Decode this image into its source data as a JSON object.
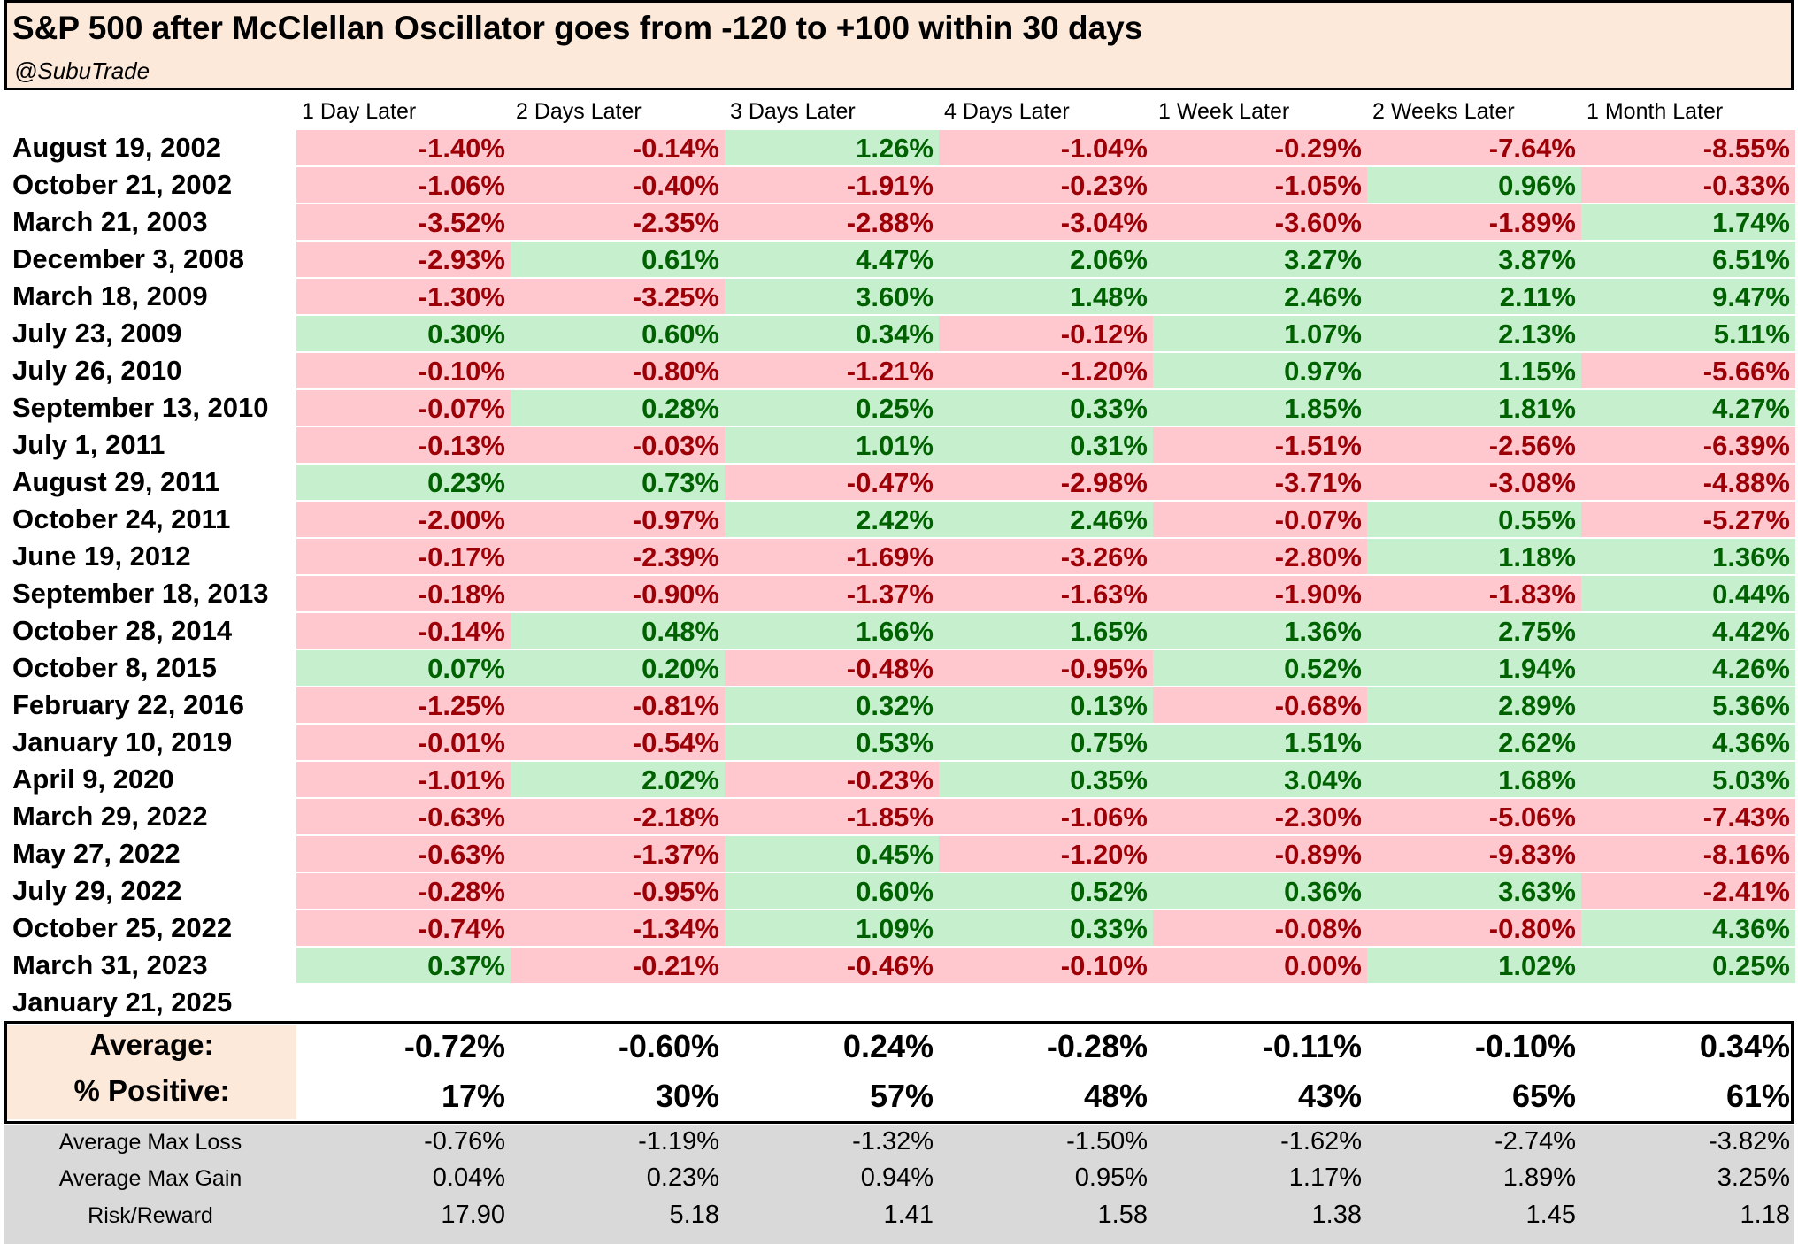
{
  "title": "S&P 500 after McClellan Oscillator goes from -120 to +100 within 30 days",
  "subtitle": "@SubuTrade",
  "chart_data": {
    "type": "table",
    "columns": [
      "1 Day Later",
      "2 Days Later",
      "3 Days Later",
      "4 Days Later",
      "1 Week Later",
      "2 Weeks Later",
      "1 Month Later"
    ],
    "rows": [
      {
        "date": "August 19, 2002",
        "values": [
          "-1.40%",
          "-0.14%",
          "1.26%",
          "-1.04%",
          "-0.29%",
          "-7.64%",
          "-8.55%"
        ]
      },
      {
        "date": "October 21, 2002",
        "values": [
          "-1.06%",
          "-0.40%",
          "-1.91%",
          "-0.23%",
          "-1.05%",
          "0.96%",
          "-0.33%"
        ]
      },
      {
        "date": "March 21, 2003",
        "values": [
          "-3.52%",
          "-2.35%",
          "-2.88%",
          "-3.04%",
          "-3.60%",
          "-1.89%",
          "1.74%"
        ]
      },
      {
        "date": "December 3, 2008",
        "values": [
          "-2.93%",
          "0.61%",
          "4.47%",
          "2.06%",
          "3.27%",
          "3.87%",
          "6.51%"
        ]
      },
      {
        "date": "March 18, 2009",
        "values": [
          "-1.30%",
          "-3.25%",
          "3.60%",
          "1.48%",
          "2.46%",
          "2.11%",
          "9.47%"
        ]
      },
      {
        "date": "July 23, 2009",
        "values": [
          "0.30%",
          "0.60%",
          "0.34%",
          "-0.12%",
          "1.07%",
          "2.13%",
          "5.11%"
        ]
      },
      {
        "date": "July 26, 2010",
        "values": [
          "-0.10%",
          "-0.80%",
          "-1.21%",
          "-1.20%",
          "0.97%",
          "1.15%",
          "-5.66%"
        ]
      },
      {
        "date": "September 13, 2010",
        "values": [
          "-0.07%",
          "0.28%",
          "0.25%",
          "0.33%",
          "1.85%",
          "1.81%",
          "4.27%"
        ]
      },
      {
        "date": "July 1, 2011",
        "values": [
          "-0.13%",
          "-0.03%",
          "1.01%",
          "0.31%",
          "-1.51%",
          "-2.56%",
          "-6.39%"
        ]
      },
      {
        "date": "August 29, 2011",
        "values": [
          "0.23%",
          "0.73%",
          "-0.47%",
          "-2.98%",
          "-3.71%",
          "-3.08%",
          "-4.88%"
        ]
      },
      {
        "date": "October 24, 2011",
        "values": [
          "-2.00%",
          "-0.97%",
          "2.42%",
          "2.46%",
          "-0.07%",
          "0.55%",
          "-5.27%"
        ]
      },
      {
        "date": "June 19, 2012",
        "values": [
          "-0.17%",
          "-2.39%",
          "-1.69%",
          "-3.26%",
          "-2.80%",
          "1.18%",
          "1.36%"
        ]
      },
      {
        "date": "September 18, 2013",
        "values": [
          "-0.18%",
          "-0.90%",
          "-1.37%",
          "-1.63%",
          "-1.90%",
          "-1.83%",
          "0.44%"
        ]
      },
      {
        "date": "October 28, 2014",
        "values": [
          "-0.14%",
          "0.48%",
          "1.66%",
          "1.65%",
          "1.36%",
          "2.75%",
          "4.42%"
        ]
      },
      {
        "date": "October 8, 2015",
        "values": [
          "0.07%",
          "0.20%",
          "-0.48%",
          "-0.95%",
          "0.52%",
          "1.94%",
          "4.26%"
        ]
      },
      {
        "date": "February 22, 2016",
        "values": [
          "-1.25%",
          "-0.81%",
          "0.32%",
          "0.13%",
          "-0.68%",
          "2.89%",
          "5.36%"
        ]
      },
      {
        "date": "January 10, 2019",
        "values": [
          "-0.01%",
          "-0.54%",
          "0.53%",
          "0.75%",
          "1.51%",
          "2.62%",
          "4.36%"
        ]
      },
      {
        "date": "April 9, 2020",
        "values": [
          "-1.01%",
          "2.02%",
          "-0.23%",
          "0.35%",
          "3.04%",
          "1.68%",
          "5.03%"
        ]
      },
      {
        "date": "March 29, 2022",
        "values": [
          "-0.63%",
          "-2.18%",
          "-1.85%",
          "-1.06%",
          "-2.30%",
          "-5.06%",
          "-7.43%"
        ]
      },
      {
        "date": "May 27, 2022",
        "values": [
          "-0.63%",
          "-1.37%",
          "0.45%",
          "-1.20%",
          "-0.89%",
          "-9.83%",
          "-8.16%"
        ]
      },
      {
        "date": "July 29, 2022",
        "values": [
          "-0.28%",
          "-0.95%",
          "0.60%",
          "0.52%",
          "0.36%",
          "3.63%",
          "-2.41%"
        ]
      },
      {
        "date": "October 25, 2022",
        "values": [
          "-0.74%",
          "-1.34%",
          "1.09%",
          "0.33%",
          "-0.08%",
          "-0.80%",
          "4.36%"
        ]
      },
      {
        "date": "March 31, 2023",
        "values": [
          "0.37%",
          "-0.21%",
          "-0.46%",
          "-0.10%",
          "0.00%",
          "1.02%",
          "0.25%"
        ]
      },
      {
        "date": "January 21, 2025",
        "values": []
      }
    ],
    "summary": [
      {
        "label": "Average:",
        "values": [
          "-0.72%",
          "-0.60%",
          "0.24%",
          "-0.28%",
          "-0.11%",
          "-0.10%",
          "0.34%"
        ]
      },
      {
        "label": "% Positive:",
        "values": [
          "17%",
          "30%",
          "57%",
          "48%",
          "43%",
          "65%",
          "61%"
        ]
      }
    ],
    "stats": [
      {
        "label": "Average Max Loss",
        "values": [
          "-0.76%",
          "-1.19%",
          "-1.32%",
          "-1.50%",
          "-1.62%",
          "-2.74%",
          "-3.82%"
        ]
      },
      {
        "label": "Average Max Gain",
        "values": [
          "0.04%",
          "0.23%",
          "0.94%",
          "0.95%",
          "1.17%",
          "1.89%",
          "3.25%"
        ]
      },
      {
        "label": "Risk/Reward",
        "values": [
          "17.90",
          "5.18",
          "1.41",
          "1.58",
          "1.38",
          "1.45",
          "1.18"
        ]
      }
    ],
    "colors": {
      "positive_bg": "#c6efce",
      "positive_text": "#006100",
      "negative_bg": "#ffc7ce",
      "negative_text": "#9c0006",
      "header_bg": "#fde9d9",
      "stats_bg": "#d9d9d9"
    }
  }
}
